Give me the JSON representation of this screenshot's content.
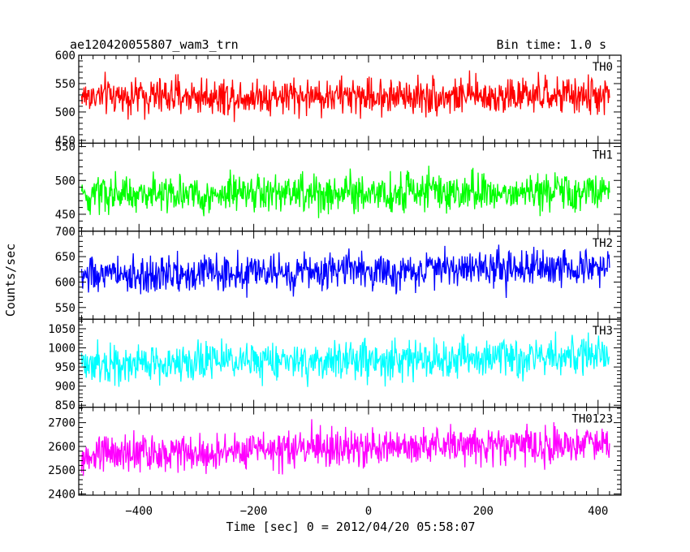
{
  "chart_data": {
    "type": "line",
    "title": "ae120420055807_wam3_trn",
    "subtitle": "Bin time: 1.0 s",
    "ylabel": "Counts/sec",
    "xlabel": "Time [sec] 0 = 2012/04/20 05:58:07",
    "xlim": [
      -505,
      440
    ],
    "x_ticks": [
      -400,
      -200,
      0,
      200,
      400
    ],
    "x_range": [
      -500,
      420
    ],
    "grid": false,
    "panels": [
      {
        "name": "TH0",
        "color": "#ff0000",
        "ylim": [
          445,
          600
        ],
        "y_ticks": [
          450,
          500,
          550,
          600
        ],
        "y_tick_labels": [
          "450",
          "500",
          "550",
          "600"
        ],
        "mean": 528,
        "amplitude": 45,
        "trend": 0
      },
      {
        "name": "TH1",
        "color": "#00ff00",
        "ylim": [
          425,
          555
        ],
        "y_ticks": [
          450,
          500,
          550
        ],
        "y_tick_labels": [
          "450",
          "500",
          "550"
        ],
        "mean": 478,
        "amplitude": 40,
        "trend": 6
      },
      {
        "name": "TH2",
        "color": "#0000ff",
        "ylim": [
          527,
          700
        ],
        "y_ticks": [
          550,
          600,
          650,
          700
        ],
        "y_tick_labels": [
          "550",
          "600",
          "650",
          "700"
        ],
        "mean": 612,
        "amplitude": 50,
        "trend": 18
      },
      {
        "name": "TH3",
        "color": "#00ffff",
        "ylim": [
          845,
          1075
        ],
        "y_ticks": [
          850,
          900,
          950,
          1000,
          1050
        ],
        "y_tick_labels": [
          "850",
          "900",
          "950",
          "1000",
          "1050"
        ],
        "mean": 958,
        "amplitude": 70,
        "trend": 20
      },
      {
        "name": "TH0123",
        "color": "#ff00ff",
        "ylim": [
          2395,
          2765
        ],
        "y_ticks": [
          2400,
          2500,
          2600,
          2700
        ],
        "y_tick_labels": [
          "2400",
          "2500",
          "2600",
          "2700"
        ],
        "mean": 2568,
        "amplitude": 110,
        "trend": 45
      }
    ]
  }
}
